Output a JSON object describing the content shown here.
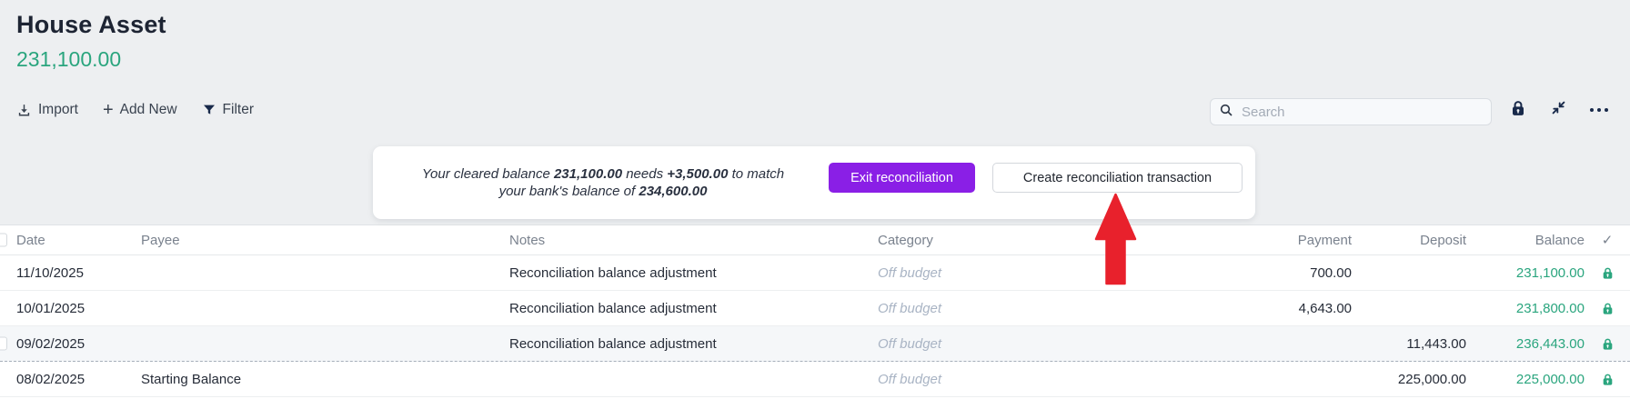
{
  "colors": {
    "green": "#2aa57e",
    "purple": "#8a1fe6",
    "red": "#e8212c"
  },
  "account": {
    "title": "House Asset",
    "balance": "231,100.00"
  },
  "toolbar": {
    "import_label": "Import",
    "add_new_label": "Add New",
    "filter_label": "Filter",
    "search_placeholder": "Search"
  },
  "icons": {
    "import": "download-tray",
    "add_new": "plus",
    "plus_glyph": "+",
    "filter": "funnel",
    "search": "magnifier",
    "lock": "padlock",
    "collapse": "arrows-inward",
    "more": "ellipsis",
    "cleared_header": "checkmark",
    "cleared_glyph": "✓",
    "row_cleared": "padlock-green",
    "pointer": "red-arrow-up"
  },
  "banner": {
    "text_1": "Your cleared balance ",
    "amount_cleared": "231,100.00",
    "text_2": " needs ",
    "amount_needed": "+3,500.00",
    "text_3": " to match",
    "text_4": "your bank's balance of ",
    "amount_bank": "234,600.00",
    "exit_button": "Exit reconciliation",
    "create_button": "Create reconciliation transaction"
  },
  "table": {
    "columns": [
      "Date",
      "Payee",
      "Notes",
      "Category",
      "Payment",
      "Deposit",
      "Balance"
    ],
    "rows": [
      {
        "date": "11/10/2025",
        "payee": "",
        "notes": "Reconciliation balance adjustment",
        "category": "Off budget",
        "payment": "700.00",
        "deposit": "",
        "balance": "231,100.00",
        "highlighted": false
      },
      {
        "date": "10/01/2025",
        "payee": "",
        "notes": "Reconciliation balance adjustment",
        "category": "Off budget",
        "payment": "4,643.00",
        "deposit": "",
        "balance": "231,800.00",
        "highlighted": false
      },
      {
        "date": "09/02/2025",
        "payee": "",
        "notes": "Reconciliation balance adjustment",
        "category": "Off budget",
        "payment": "",
        "deposit": "11,443.00",
        "balance": "236,443.00",
        "highlighted": true
      },
      {
        "date": "08/02/2025",
        "payee": "Starting Balance",
        "notes": "",
        "category": "Off budget",
        "payment": "",
        "deposit": "225,000.00",
        "balance": "225,000.00",
        "highlighted": false
      }
    ]
  }
}
